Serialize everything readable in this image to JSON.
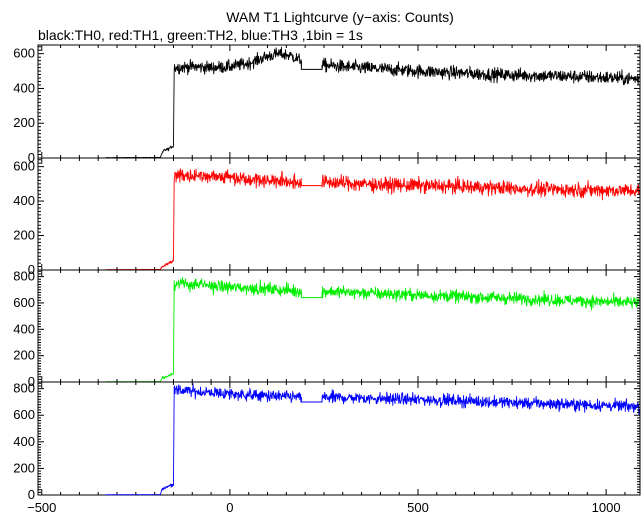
{
  "chart_data": {
    "type": "line",
    "title": "WAM T1 Lightcurve (y−axis: Counts)",
    "subtitle": "black:TH0, red:TH1, green:TH2, blue:TH3 ,1bin = 1s",
    "xlabel": "",
    "ylabel": "",
    "xlim": [
      -510,
      1090
    ],
    "x_ticks": [
      -500,
      0,
      500,
      1000
    ],
    "x_tick_labels": [
      "−500",
      "0",
      "500",
      "1000"
    ],
    "grid": false,
    "colors": {
      "TH0": "#000000",
      "TH1": "#ff0000",
      "TH2": "#00ee00",
      "TH3": "#0000ff"
    },
    "panels": [
      {
        "name": "TH0",
        "color": "#000000",
        "ylim": [
          0,
          650
        ],
        "y_ticks": [
          0,
          200,
          400,
          600
        ],
        "y_tick_labels": [
          "0",
          "200",
          "400",
          "600"
        ],
        "gap": [
          190,
          245
        ],
        "gap_level": 510,
        "profile": [
          [
            -330,
            2
          ],
          [
            -185,
            3
          ],
          [
            -180,
            25
          ],
          [
            -175,
            45
          ],
          [
            -165,
            50
          ],
          [
            -150,
            70
          ],
          [
            -148,
            520
          ],
          [
            -100,
            525
          ],
          [
            -50,
            520
          ],
          [
            0,
            525
          ],
          [
            50,
            545
          ],
          [
            100,
            585
          ],
          [
            130,
            600
          ],
          [
            160,
            590
          ],
          [
            180,
            570
          ],
          [
            190,
            560
          ],
          [
            245,
            535
          ],
          [
            300,
            525
          ],
          [
            500,
            500
          ],
          [
            700,
            480
          ],
          [
            900,
            470
          ],
          [
            1090,
            455
          ]
        ],
        "noise": [
          [
            -330,
            1
          ],
          [
            -185,
            1
          ],
          [
            -180,
            8
          ],
          [
            -150,
            8
          ],
          [
            -148,
            32
          ],
          [
            190,
            32
          ],
          [
            245,
            35
          ],
          [
            1090,
            35
          ]
        ]
      },
      {
        "name": "TH1",
        "color": "#ff0000",
        "ylim": [
          0,
          650
        ],
        "y_ticks": [
          0,
          200,
          400,
          600
        ],
        "y_tick_labels": [
          "0",
          "200",
          "400",
          "600"
        ],
        "gap": [
          190,
          245
        ],
        "gap_level": 490,
        "profile": [
          [
            -330,
            2
          ],
          [
            -185,
            3
          ],
          [
            -180,
            20
          ],
          [
            -165,
            35
          ],
          [
            -150,
            55
          ],
          [
            -148,
            555
          ],
          [
            -100,
            550
          ],
          [
            0,
            540
          ],
          [
            100,
            520
          ],
          [
            190,
            510
          ],
          [
            245,
            510
          ],
          [
            400,
            495
          ],
          [
            600,
            485
          ],
          [
            800,
            470
          ],
          [
            1090,
            460
          ]
        ],
        "noise": [
          [
            -330,
            1
          ],
          [
            -185,
            1
          ],
          [
            -180,
            8
          ],
          [
            -150,
            8
          ],
          [
            -148,
            38
          ],
          [
            190,
            38
          ],
          [
            245,
            38
          ],
          [
            1090,
            38
          ]
        ]
      },
      {
        "name": "TH2",
        "color": "#00ee00",
        "ylim": [
          0,
          850
        ],
        "y_ticks": [
          0,
          200,
          400,
          600,
          800
        ],
        "y_tick_labels": [
          "0",
          "200",
          "400",
          "600",
          "800"
        ],
        "gap": [
          190,
          245
        ],
        "gap_level": 640,
        "profile": [
          [
            -330,
            2
          ],
          [
            -185,
            3
          ],
          [
            -180,
            30
          ],
          [
            -165,
            45
          ],
          [
            -150,
            70
          ],
          [
            -148,
            745
          ],
          [
            -100,
            740
          ],
          [
            0,
            720
          ],
          [
            100,
            705
          ],
          [
            190,
            690
          ],
          [
            245,
            690
          ],
          [
            400,
            670
          ],
          [
            600,
            650
          ],
          [
            800,
            630
          ],
          [
            1090,
            600
          ]
        ],
        "noise": [
          [
            -330,
            1
          ],
          [
            -185,
            1
          ],
          [
            -180,
            10
          ],
          [
            -150,
            10
          ],
          [
            -148,
            42
          ],
          [
            190,
            42
          ],
          [
            245,
            42
          ],
          [
            1090,
            42
          ]
        ]
      },
      {
        "name": "TH3",
        "color": "#0000ff",
        "ylim": [
          0,
          850
        ],
        "y_ticks": [
          0,
          200,
          400,
          600,
          800
        ],
        "y_tick_labels": [
          "0",
          "200",
          "400",
          "600",
          "800"
        ],
        "gap": [
          190,
          245
        ],
        "gap_level": 700,
        "profile": [
          [
            -330,
            2
          ],
          [
            -185,
            3
          ],
          [
            -180,
            45
          ],
          [
            -165,
            65
          ],
          [
            -150,
            75
          ],
          [
            -148,
            790
          ],
          [
            -100,
            780
          ],
          [
            0,
            760
          ],
          [
            100,
            745
          ],
          [
            190,
            735
          ],
          [
            245,
            735
          ],
          [
            400,
            725
          ],
          [
            600,
            710
          ],
          [
            800,
            690
          ],
          [
            1090,
            665
          ]
        ],
        "noise": [
          [
            -330,
            1
          ],
          [
            -185,
            1
          ],
          [
            -180,
            10
          ],
          [
            -150,
            10
          ],
          [
            -148,
            40
          ],
          [
            190,
            40
          ],
          [
            245,
            40
          ],
          [
            1090,
            40
          ]
        ]
      }
    ]
  }
}
